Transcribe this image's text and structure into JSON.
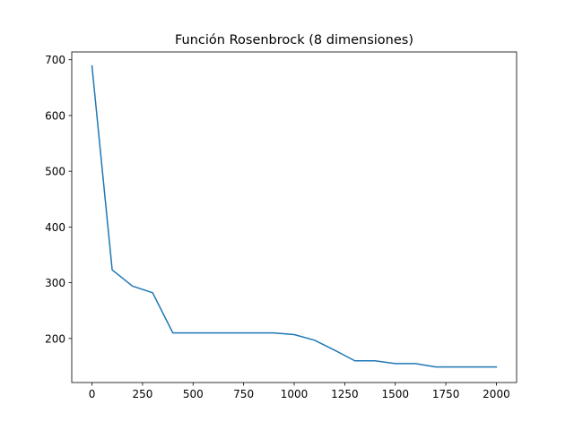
{
  "chart_data": {
    "type": "line",
    "title": "Función Rosenbrock (8 dimensiones)",
    "xlabel": "",
    "ylabel": "",
    "xlim": [
      -100,
      2100
    ],
    "ylim": [
      121,
      714
    ],
    "x_ticks": [
      0,
      250,
      500,
      750,
      1000,
      1250,
      1500,
      1750,
      2000
    ],
    "y_ticks": [
      200,
      300,
      400,
      500,
      600,
      700
    ],
    "grid": false,
    "series": [
      {
        "color": "#1f77b4",
        "points": [
          [
            0,
            689
          ],
          [
            100,
            323
          ],
          [
            200,
            294
          ],
          [
            300,
            282
          ],
          [
            400,
            210
          ],
          [
            500,
            210
          ],
          [
            600,
            210
          ],
          [
            700,
            210
          ],
          [
            800,
            210
          ],
          [
            900,
            210
          ],
          [
            1000,
            207
          ],
          [
            1100,
            197
          ],
          [
            1200,
            179
          ],
          [
            1300,
            160
          ],
          [
            1400,
            160
          ],
          [
            1500,
            155
          ],
          [
            1600,
            155
          ],
          [
            1700,
            149
          ],
          [
            1800,
            149
          ],
          [
            1900,
            149
          ],
          [
            2000,
            149
          ]
        ]
      }
    ]
  }
}
